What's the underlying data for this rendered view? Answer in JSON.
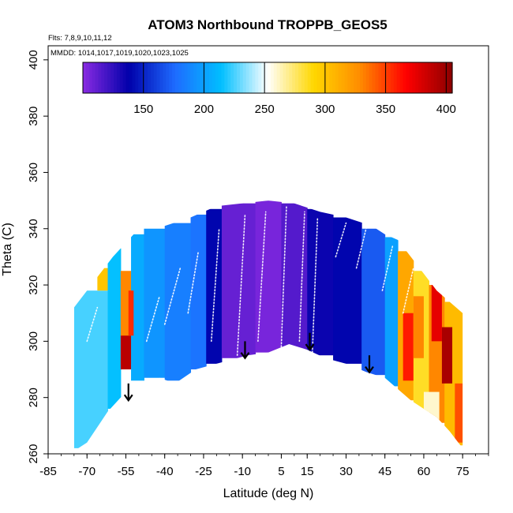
{
  "chart_data": {
    "type": "heatmap",
    "title": "ATOM3 Northbound TROPPB_GEOS5",
    "flights_note": "Flts: 7,8,9,10,11,12",
    "dates_note": "MMDD: 1014,1017,1019,1020,1023,1025",
    "xlabel": "Latitude (deg N)",
    "ylabel": "Theta (C)",
    "xlim": [
      -85,
      85
    ],
    "ylim": [
      260,
      405
    ],
    "x_ticks": [
      -85,
      -70,
      -55,
      -40,
      -25,
      -10,
      5,
      15,
      30,
      45,
      60,
      75
    ],
    "y_ticks": [
      260,
      280,
      300,
      320,
      340,
      360,
      380,
      400
    ],
    "colorbar": {
      "range": [
        100,
        405
      ],
      "ticks": [
        150,
        200,
        250,
        300,
        350,
        400
      ],
      "colors": [
        "#8a2be2",
        "#0000aa",
        "#1e6cff",
        "#00bfff",
        "#ffffff",
        "#ffd700",
        "#ff8c00",
        "#ff0000",
        "#8b0000"
      ]
    },
    "tropopause_outline": [
      [
        -75,
        261
      ],
      [
        -70,
        264
      ],
      [
        -62,
        275
      ],
      [
        -55,
        282
      ],
      [
        -48,
        285
      ],
      [
        -42,
        287
      ],
      [
        -36,
        285
      ],
      [
        -28,
        290
      ],
      [
        -20,
        292
      ],
      [
        -8,
        295
      ],
      [
        0,
        296
      ],
      [
        8,
        299
      ],
      [
        15,
        297
      ],
      [
        22,
        294
      ],
      [
        30,
        292
      ],
      [
        38,
        289
      ],
      [
        45,
        287
      ],
      [
        50,
        283
      ],
      [
        55,
        279
      ],
      [
        60,
        276
      ],
      [
        65,
        273
      ],
      [
        70,
        268
      ],
      [
        75,
        262
      ]
    ],
    "data_top_outline": [
      [
        -75,
        312
      ],
      [
        -70,
        318
      ],
      [
        -60,
        330
      ],
      [
        -55,
        335
      ],
      [
        -50,
        340
      ],
      [
        -40,
        341
      ],
      [
        -30,
        344
      ],
      [
        -25,
        346
      ],
      [
        -20,
        348
      ],
      [
        -10,
        349
      ],
      [
        0,
        350
      ],
      [
        10,
        349
      ],
      [
        20,
        346
      ],
      [
        30,
        344
      ],
      [
        40,
        341
      ],
      [
        45,
        338
      ],
      [
        50,
        336
      ],
      [
        55,
        330
      ],
      [
        60,
        324
      ],
      [
        65,
        318
      ],
      [
        70,
        314
      ],
      [
        75,
        310
      ]
    ],
    "field_regions": [
      {
        "lat": [
          -75,
          -62
        ],
        "theta": [
          262,
          318
        ],
        "value": 225
      },
      {
        "lat": [
          -62,
          -57
        ],
        "theta": [
          276,
          333
        ],
        "value": 215
      },
      {
        "lat": [
          -57,
          -53
        ],
        "theta": [
          292,
          325
        ],
        "value": 330
      },
      {
        "lat": [
          -53,
          -48
        ],
        "theta": [
          286,
          338
        ],
        "value": 205
      },
      {
        "lat": [
          -48,
          -40
        ],
        "theta": [
          287,
          340
        ],
        "value": 195
      },
      {
        "lat": [
          -40,
          -30
        ],
        "theta": [
          286,
          342
        ],
        "value": 185
      },
      {
        "lat": [
          -30,
          -24
        ],
        "theta": [
          290,
          345
        ],
        "value": 180
      },
      {
        "lat": [
          -24,
          -18
        ],
        "theta": [
          292,
          347
        ],
        "value": 140
      },
      {
        "lat": [
          -18,
          -5
        ],
        "theta": [
          294,
          349
        ],
        "value": 110
      },
      {
        "lat": [
          -5,
          5
        ],
        "theta": [
          296,
          350
        ],
        "value": 105
      },
      {
        "lat": [
          5,
          15
        ],
        "theta": [
          297,
          349
        ],
        "value": 115
      },
      {
        "lat": [
          15,
          25
        ],
        "theta": [
          295,
          347
        ],
        "value": 135
      },
      {
        "lat": [
          25,
          36
        ],
        "theta": [
          292,
          344
        ],
        "value": 140
      },
      {
        "lat": [
          36,
          45
        ],
        "theta": [
          288,
          340
        ],
        "value": 170
      },
      {
        "lat": [
          45,
          50
        ],
        "theta": [
          284,
          337
        ],
        "value": 200
      },
      {
        "lat": [
          50,
          56
        ],
        "theta": [
          279,
          332
        ],
        "value": 315
      },
      {
        "lat": [
          56,
          62
        ],
        "theta": [
          275,
          325
        ],
        "value": 285
      },
      {
        "lat": [
          62,
          68
        ],
        "theta": [
          271,
          320
        ],
        "value": 330
      },
      {
        "lat": [
          68,
          75
        ],
        "theta": [
          263,
          314
        ],
        "value": 305
      }
    ],
    "hot_patches": [
      {
        "lat": [
          -57,
          -53
        ],
        "theta": [
          290,
          302
        ],
        "value": 390
      },
      {
        "lat": [
          -54,
          -52
        ],
        "theta": [
          302,
          318
        ],
        "value": 355
      },
      {
        "lat": [
          -66,
          -62
        ],
        "theta": [
          318,
          326
        ],
        "value": 300
      },
      {
        "lat": [
          52,
          56
        ],
        "theta": [
          286,
          310
        ],
        "value": 360
      },
      {
        "lat": [
          56,
          60
        ],
        "theta": [
          294,
          316
        ],
        "value": 330
      },
      {
        "lat": [
          63,
          67
        ],
        "theta": [
          300,
          320
        ],
        "value": 375
      },
      {
        "lat": [
          67,
          71
        ],
        "theta": [
          285,
          305
        ],
        "value": 395
      },
      {
        "lat": [
          72,
          75
        ],
        "theta": [
          264,
          285
        ],
        "value": 345
      },
      {
        "lat": [
          60,
          66
        ],
        "theta": [
          272,
          282
        ],
        "value": 260
      }
    ],
    "arrows": [
      {
        "lat": -54,
        "theta_top": 285,
        "theta_bottom": 279
      },
      {
        "lat": -9,
        "theta_top": 300,
        "theta_bottom": 294
      },
      {
        "lat": 16,
        "theta_top": 303,
        "theta_bottom": 297
      },
      {
        "lat": 39,
        "theta_top": 295,
        "theta_bottom": 289
      }
    ],
    "flight_tracks": [
      {
        "lat": [
          -47,
          -42
        ],
        "theta": [
          300,
          316
        ]
      },
      {
        "lat": [
          -40,
          -34
        ],
        "theta": [
          306,
          326
        ]
      },
      {
        "lat": [
          -31,
          -27
        ],
        "theta": [
          310,
          332
        ]
      },
      {
        "lat": [
          -22,
          -19
        ],
        "theta": [
          300,
          340
        ]
      },
      {
        "lat": [
          -12,
          -9
        ],
        "theta": [
          295,
          345
        ]
      },
      {
        "lat": [
          -4,
          -1
        ],
        "theta": [
          300,
          346
        ]
      },
      {
        "lat": [
          5,
          7
        ],
        "theta": [
          298,
          348
        ]
      },
      {
        "lat": [
          12,
          14
        ],
        "theta": [
          300,
          346
        ]
      },
      {
        "lat": [
          17,
          19
        ],
        "theta": [
          296,
          344
        ]
      },
      {
        "lat": [
          26,
          30
        ],
        "theta": [
          330,
          342
        ]
      },
      {
        "lat": [
          34,
          38
        ],
        "theta": [
          326,
          341
        ]
      },
      {
        "lat": [
          44,
          48
        ],
        "theta": [
          318,
          334
        ]
      },
      {
        "lat": [
          52,
          56
        ],
        "theta": [
          310,
          326
        ]
      },
      {
        "lat": [
          -70,
          -66
        ],
        "theta": [
          300,
          312
        ]
      }
    ]
  }
}
